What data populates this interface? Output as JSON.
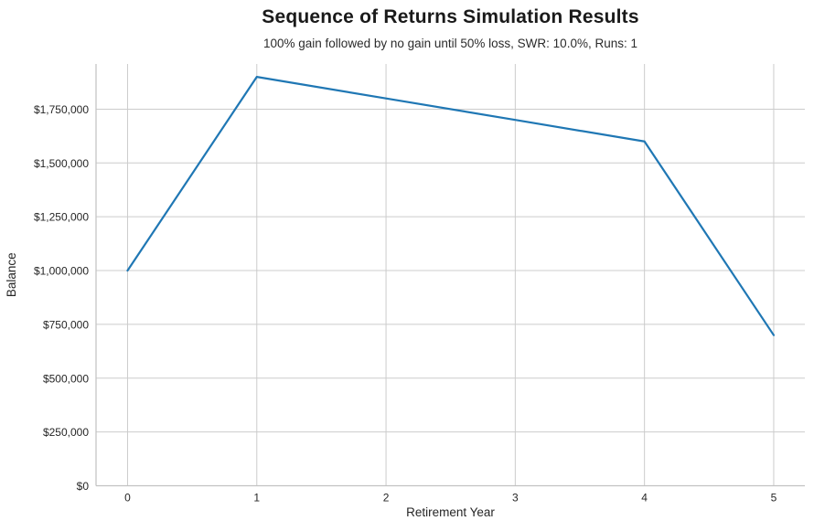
{
  "chart_data": {
    "type": "line",
    "title": "Sequence of Returns Simulation Results",
    "subtitle": "100% gain followed by no gain until 50% loss, SWR: 10.0%, Runs: 1",
    "xlabel": "Retirement Year",
    "ylabel": "Balance",
    "x": [
      0,
      1,
      2,
      3,
      4,
      5
    ],
    "series": [
      {
        "name": "Balance",
        "values": [
          1000000,
          1900000,
          1800000,
          1700000,
          1600000,
          700000
        ]
      }
    ],
    "x_ticks": [
      0,
      1,
      2,
      3,
      4,
      5
    ],
    "x_tick_labels": [
      "0",
      "1",
      "2",
      "3",
      "4",
      "5"
    ],
    "y_ticks": [
      0,
      250000,
      500000,
      750000,
      1000000,
      1250000,
      1500000,
      1750000
    ],
    "y_tick_labels": [
      "$0",
      "$250,000",
      "$500,000",
      "$750,000",
      "$1,000,000",
      "$1,250,000",
      "$1,500,000",
      "$1,750,000"
    ],
    "xlim": [
      -0.244,
      5.241
    ],
    "ylim": [
      0,
      1960000
    ],
    "grid": true,
    "legend": false,
    "colors": {
      "line": "#1f77b4",
      "grid": "#cccccc",
      "spine": "#c2c2c2",
      "tick_text": "#262626",
      "axis_label_text": "#262626"
    }
  }
}
